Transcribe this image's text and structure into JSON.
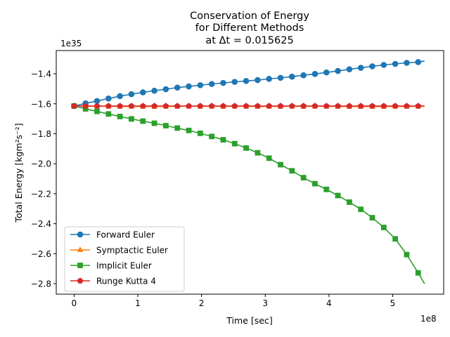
{
  "chart_data": {
    "type": "line",
    "title": [
      "Conservation of Energy",
      "for Different Methods",
      "at Δt = 0.015625"
    ],
    "xlabel": "Time [sec]",
    "ylabel": "Total Energy [kgm²s⁻²]",
    "x_offset_label": "1e8",
    "y_offset_label": "1e35",
    "xlim": [
      -0.28,
      5.8
    ],
    "ylim": [
      -2.87,
      -1.245
    ],
    "x_ticks": [
      0,
      1,
      2,
      3,
      4,
      5
    ],
    "x_tick_labels": [
      "0",
      "1",
      "2",
      "3",
      "4",
      "5"
    ],
    "y_ticks": [
      -2.8,
      -2.6,
      -2.4,
      -2.2,
      -2.0,
      -1.8,
      -1.6,
      -1.4
    ],
    "y_tick_labels": [
      "−2.8",
      "−2.6",
      "−2.4",
      "−2.2",
      "−2.0",
      "−1.8",
      "−1.6",
      "−1.4"
    ],
    "grid": false,
    "legend_position": "lower-left",
    "series": [
      {
        "name": "Forward Euler",
        "color": "#1f77b4",
        "marker": "circle",
        "x": [
          0,
          0.18,
          0.36,
          0.54,
          0.72,
          0.9,
          1.08,
          1.26,
          1.44,
          1.62,
          1.8,
          1.98,
          2.16,
          2.34,
          2.52,
          2.7,
          2.88,
          3.06,
          3.24,
          3.42,
          3.6,
          3.78,
          3.96,
          4.14,
          4.32,
          4.5,
          4.68,
          4.86,
          5.04,
          5.22,
          5.4,
          5.5
        ],
        "y": [
          -1.615,
          -1.597,
          -1.582,
          -1.565,
          -1.549,
          -1.536,
          -1.524,
          -1.513,
          -1.503,
          -1.492,
          -1.484,
          -1.476,
          -1.468,
          -1.461,
          -1.454,
          -1.448,
          -1.442,
          -1.434,
          -1.427,
          -1.419,
          -1.41,
          -1.401,
          -1.391,
          -1.381,
          -1.37,
          -1.36,
          -1.35,
          -1.341,
          -1.334,
          -1.327,
          -1.322,
          -1.315
        ],
        "marked_points": 31
      },
      {
        "name": "Symptactic Euler",
        "color": "#ff7f0e",
        "marker": "triangle",
        "x": [
          0,
          0.18,
          0.36,
          0.54,
          0.72,
          0.9,
          1.08,
          1.26,
          1.44,
          1.62,
          1.8,
          1.98,
          2.16,
          2.34,
          2.52,
          2.7,
          2.88,
          3.06,
          3.24,
          3.42,
          3.6,
          3.78,
          3.96,
          4.14,
          4.32,
          4.5,
          4.68,
          4.86,
          5.04,
          5.22,
          5.4,
          5.5
        ],
        "y": [
          -1.615,
          -1.617,
          -1.617,
          -1.617,
          -1.618,
          -1.618,
          -1.618,
          -1.619,
          -1.618,
          -1.617,
          -1.617,
          -1.617,
          -1.617,
          -1.617,
          -1.617,
          -1.617,
          -1.618,
          -1.618,
          -1.617,
          -1.617,
          -1.617,
          -1.617,
          -1.617,
          -1.618,
          -1.619,
          -1.619,
          -1.619,
          -1.619,
          -1.618,
          -1.618,
          -1.617,
          -1.617
        ],
        "marked_points": 31
      },
      {
        "name": "Implicit Euler",
        "color": "#2ca02c",
        "marker": "square",
        "x": [
          0,
          0.18,
          0.36,
          0.54,
          0.72,
          0.9,
          1.08,
          1.26,
          1.44,
          1.62,
          1.8,
          1.98,
          2.16,
          2.34,
          2.52,
          2.7,
          2.88,
          3.06,
          3.24,
          3.42,
          3.6,
          3.78,
          3.96,
          4.14,
          4.32,
          4.5,
          4.68,
          4.86,
          5.04,
          5.22,
          5.4,
          5.5
        ],
        "y": [
          -1.615,
          -1.634,
          -1.651,
          -1.668,
          -1.685,
          -1.701,
          -1.716,
          -1.73,
          -1.746,
          -1.762,
          -1.778,
          -1.797,
          -1.818,
          -1.84,
          -1.866,
          -1.895,
          -1.927,
          -1.963,
          -2.006,
          -2.047,
          -2.093,
          -2.133,
          -2.171,
          -2.212,
          -2.256,
          -2.304,
          -2.36,
          -2.425,
          -2.501,
          -2.606,
          -2.728,
          -2.8
        ],
        "marked_points": 31
      },
      {
        "name": "Runge Kutta 4",
        "color": "#d62728",
        "marker": "pentagon",
        "x": [
          0,
          0.18,
          0.36,
          0.54,
          0.72,
          0.9,
          1.08,
          1.26,
          1.44,
          1.62,
          1.8,
          1.98,
          2.16,
          2.34,
          2.52,
          2.7,
          2.88,
          3.06,
          3.24,
          3.42,
          3.6,
          3.78,
          3.96,
          4.14,
          4.32,
          4.5,
          4.68,
          4.86,
          5.04,
          5.22,
          5.4,
          5.5
        ],
        "y": [
          -1.615,
          -1.615,
          -1.615,
          -1.615,
          -1.615,
          -1.615,
          -1.615,
          -1.615,
          -1.615,
          -1.615,
          -1.615,
          -1.615,
          -1.615,
          -1.615,
          -1.615,
          -1.615,
          -1.615,
          -1.615,
          -1.615,
          -1.615,
          -1.615,
          -1.615,
          -1.615,
          -1.615,
          -1.615,
          -1.615,
          -1.615,
          -1.615,
          -1.615,
          -1.615,
          -1.615,
          -1.615
        ],
        "marked_points": 31
      }
    ]
  }
}
